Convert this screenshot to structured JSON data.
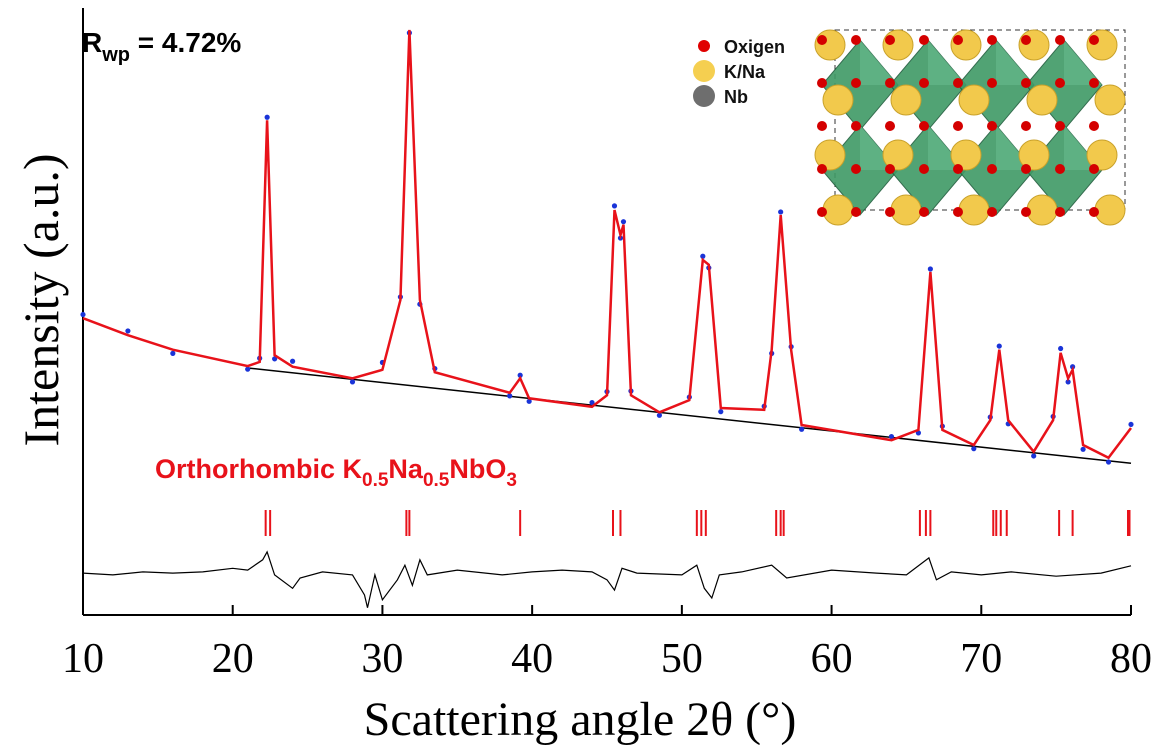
{
  "chart_data": {
    "type": "line",
    "xlabel": "Scattering angle 2θ (°)",
    "ylabel": "Intensity (a.u.)",
    "xlim": [
      10,
      80
    ],
    "xticks": [
      10,
      20,
      30,
      40,
      50,
      60,
      70,
      80
    ],
    "ylim": [
      0,
      100
    ],
    "annotation": {
      "main": "R",
      "sub": "wp",
      "rest": " = 4.72%"
    },
    "phase_label": {
      "parts": [
        "Orthorhombic K",
        "0.5",
        "Na",
        "0.5",
        "NbO",
        "3"
      ],
      "color": "#e8121a"
    },
    "legend": [
      {
        "label": "Oxigen",
        "color": "#e00000"
      },
      {
        "label": "K/Na",
        "color": "#f5cf50"
      },
      {
        "label": "Nb",
        "color": "#6e6e6e"
      }
    ],
    "x": [
      10,
      13,
      16,
      21,
      21.8,
      22.3,
      22.8,
      24,
      28,
      30,
      31.2,
      31.8,
      32.5,
      33.5,
      38.5,
      39.2,
      39.8,
      44,
      45,
      45.5,
      45.9,
      46.1,
      46.6,
      48.5,
      50.5,
      51.4,
      51.8,
      52.6,
      55.5,
      56,
      56.6,
      57.3,
      58,
      64,
      65.8,
      66.6,
      67.4,
      69.5,
      70.6,
      71.2,
      71.8,
      73.5,
      74.8,
      75.3,
      75.8,
      76.1,
      76.8,
      78.5,
      80
    ],
    "series": [
      {
        "color": "#1a34d8",
        "marker": "dot",
        "values": [
          49.5,
          46.8,
          43.1,
          40.5,
          42.3,
          82.0,
          42.2,
          41.8,
          38.4,
          41.6,
          52.4,
          95.9,
          51.2,
          40.6,
          36.1,
          39.5,
          35.2,
          35.0,
          36.8,
          67.4,
          62.1,
          64.8,
          36.9,
          32.9,
          35.9,
          59.1,
          57.2,
          33.5,
          34.4,
          43.1,
          66.4,
          44.2,
          30.6,
          29.4,
          30.0,
          57.0,
          31.1,
          27.4,
          32.6,
          44.3,
          31.5,
          26.2,
          32.7,
          43.9,
          38.4,
          40.9,
          27.3,
          25.2,
          31.4
        ]
      },
      {
        "color": "#e8121a",
        "values": [
          48.9,
          46.1,
          43.7,
          41.0,
          41.7,
          81.5,
          42.8,
          40.9,
          39.0,
          40.4,
          51.9,
          96.4,
          51.9,
          40.0,
          36.6,
          39.0,
          35.7,
          34.3,
          36.2,
          66.7,
          62.6,
          64.3,
          36.2,
          33.4,
          35.4,
          58.5,
          57.7,
          34.1,
          33.8,
          43.7,
          65.9,
          43.7,
          31.3,
          28.8,
          30.5,
          56.5,
          30.5,
          28.0,
          32.1,
          43.7,
          32.1,
          26.9,
          32.1,
          43.2,
          39.0,
          40.4,
          28.0,
          25.9,
          30.8
        ]
      }
    ],
    "background": {
      "color": "#000000",
      "x": [
        21,
        80
      ],
      "values": [
        40.7,
        25.0
      ]
    },
    "reflections": {
      "color": "#e8121a",
      "x": [
        22.2,
        22.5,
        31.6,
        31.8,
        39.2,
        45.4,
        45.9,
        51.0,
        51.3,
        51.6,
        56.3,
        56.6,
        56.8,
        65.9,
        66.3,
        66.6,
        70.8,
        71.0,
        71.3,
        71.7,
        75.2,
        76.1,
        79.8,
        79.9
      ]
    },
    "difference": {
      "color": "#000000",
      "x": [
        10,
        12,
        14,
        16,
        18,
        20,
        21,
        22,
        22.3,
        22.8,
        24,
        24.5,
        26,
        28,
        28.8,
        29,
        29.5,
        30,
        31,
        31.5,
        32,
        32.5,
        33,
        35,
        38,
        40,
        42,
        44,
        45,
        45.5,
        46,
        47,
        50,
        51,
        51.5,
        52,
        52.5,
        54,
        56,
        57,
        60,
        63,
        65,
        66.5,
        67,
        68,
        70,
        72,
        75,
        78,
        80
      ],
      "values": [
        6.9,
        6.6,
        7.1,
        6.9,
        7.1,
        7.7,
        7.4,
        9.1,
        10.4,
        6.6,
        4.4,
        6.1,
        7.1,
        6.6,
        3.3,
        1.2,
        6.6,
        2.5,
        5.8,
        8.2,
        4.9,
        9.1,
        6.6,
        7.4,
        6.6,
        7.1,
        7.4,
        7.1,
        5.8,
        4.1,
        7.7,
        6.9,
        6.6,
        8.2,
        4.4,
        2.8,
        6.6,
        7.1,
        8.2,
        6.1,
        7.4,
        6.9,
        6.6,
        9.4,
        5.8,
        7.1,
        6.6,
        7.1,
        6.4,
        6.9,
        8.1
      ]
    }
  }
}
